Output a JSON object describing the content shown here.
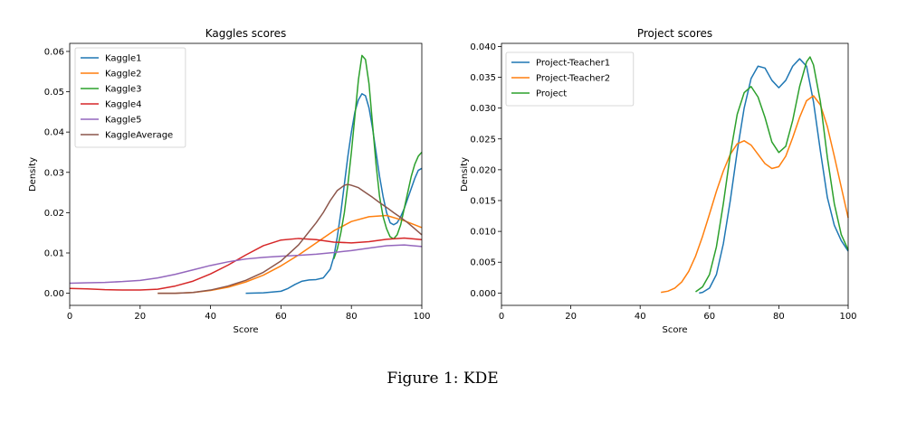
{
  "figure_caption": "Figure 1: KDE",
  "chart_data": [
    {
      "type": "line",
      "title": "Kaggles scores",
      "xlabel": "Score",
      "ylabel": "Density",
      "xlim": [
        0,
        100
      ],
      "ylim": [
        -0.003,
        0.062
      ],
      "xticks": [
        0,
        20,
        40,
        60,
        80,
        100
      ],
      "yticks": [
        0.0,
        0.01,
        0.02,
        0.03,
        0.04,
        0.05,
        0.06
      ],
      "ytick_labels": [
        "0.00",
        "0.01",
        "0.02",
        "0.03",
        "0.04",
        "0.05",
        "0.06"
      ],
      "grid": false,
      "legend_position": "upper-left",
      "series": [
        {
          "name": "Kaggle1",
          "color": "#1f77b4",
          "x": [
            50,
            55,
            60,
            62,
            64,
            66,
            68,
            70,
            72,
            74,
            75,
            76,
            77,
            78,
            79,
            80,
            81,
            82,
            83,
            84,
            85,
            86,
            87,
            88,
            89,
            90,
            91,
            92,
            93,
            94,
            95,
            96,
            97,
            98,
            99,
            100
          ],
          "y": [
            0.0,
            0.0001,
            0.0005,
            0.0012,
            0.0022,
            0.003,
            0.0033,
            0.0034,
            0.0038,
            0.006,
            0.009,
            0.014,
            0.02,
            0.027,
            0.034,
            0.04,
            0.045,
            0.048,
            0.0495,
            0.049,
            0.046,
            0.041,
            0.035,
            0.029,
            0.024,
            0.02,
            0.0175,
            0.017,
            0.0175,
            0.019,
            0.021,
            0.0235,
            0.026,
            0.0285,
            0.0305,
            0.031
          ]
        },
        {
          "name": "Kaggle2",
          "color": "#ff7f0e",
          "x": [
            25,
            30,
            35,
            40,
            45,
            50,
            55,
            60,
            65,
            70,
            75,
            80,
            85,
            90,
            95,
            100
          ],
          "y": [
            0.0,
            0.0,
            0.0002,
            0.0007,
            0.0015,
            0.0028,
            0.0045,
            0.0068,
            0.0095,
            0.0125,
            0.0155,
            0.0178,
            0.019,
            0.0193,
            0.018,
            0.0163
          ]
        },
        {
          "name": "Kaggle3",
          "color": "#2ca02c",
          "x": [
            75,
            76,
            77,
            78,
            79,
            80,
            81,
            82,
            83,
            84,
            85,
            86,
            87,
            88,
            89,
            90,
            91,
            92,
            93,
            94,
            95,
            96,
            97,
            98,
            99,
            100
          ],
          "y": [
            0.0085,
            0.011,
            0.015,
            0.02,
            0.027,
            0.035,
            0.044,
            0.053,
            0.059,
            0.058,
            0.052,
            0.042,
            0.032,
            0.024,
            0.019,
            0.016,
            0.014,
            0.0135,
            0.0145,
            0.017,
            0.021,
            0.025,
            0.029,
            0.032,
            0.034,
            0.035
          ]
        },
        {
          "name": "Kaggle4",
          "color": "#d62728",
          "x": [
            0,
            5,
            10,
            15,
            20,
            25,
            30,
            35,
            40,
            45,
            50,
            55,
            60,
            65,
            70,
            75,
            80,
            85,
            90,
            95,
            100
          ],
          "y": [
            0.0012,
            0.0011,
            0.0009,
            0.0008,
            0.0008,
            0.001,
            0.0018,
            0.003,
            0.0048,
            0.007,
            0.0095,
            0.0118,
            0.0132,
            0.0136,
            0.0133,
            0.0127,
            0.0125,
            0.0128,
            0.0134,
            0.0137,
            0.0133
          ]
        },
        {
          "name": "Kaggle5",
          "color": "#9467bd",
          "x": [
            0,
            5,
            10,
            15,
            20,
            25,
            30,
            35,
            40,
            45,
            50,
            55,
            60,
            65,
            70,
            75,
            80,
            85,
            90,
            95,
            100
          ],
          "y": [
            0.0025,
            0.0026,
            0.0027,
            0.0029,
            0.0032,
            0.0038,
            0.0047,
            0.0058,
            0.0069,
            0.0078,
            0.0085,
            0.0089,
            0.0092,
            0.0094,
            0.0097,
            0.0101,
            0.0106,
            0.0112,
            0.0118,
            0.012,
            0.0116
          ]
        },
        {
          "name": "KaggleAverage",
          "color": "#8c564b",
          "x": [
            25,
            30,
            35,
            40,
            45,
            50,
            55,
            60,
            65,
            70,
            72,
            74,
            76,
            78,
            79,
            80,
            82,
            84,
            86,
            88,
            90,
            92,
            94,
            96,
            98,
            100
          ],
          "y": [
            0.0,
            0.0,
            0.0002,
            0.0008,
            0.0018,
            0.0032,
            0.0052,
            0.008,
            0.012,
            0.0175,
            0.02,
            0.023,
            0.0255,
            0.0268,
            0.027,
            0.0268,
            0.0262,
            0.025,
            0.0238,
            0.0225,
            0.0213,
            0.02,
            0.0188,
            0.0175,
            0.016,
            0.0145
          ]
        }
      ]
    },
    {
      "type": "line",
      "title": "Project scores",
      "xlabel": "Score",
      "ylabel": "Density",
      "xlim": [
        0,
        100
      ],
      "ylim": [
        -0.002,
        0.0405
      ],
      "xticks": [
        0,
        20,
        40,
        60,
        80,
        100
      ],
      "yticks": [
        0.0,
        0.005,
        0.01,
        0.015,
        0.02,
        0.025,
        0.03,
        0.035,
        0.04
      ],
      "ytick_labels": [
        "0.000",
        "0.005",
        "0.010",
        "0.015",
        "0.020",
        "0.025",
        "0.030",
        "0.035",
        "0.040"
      ],
      "grid": false,
      "legend_position": "upper-left",
      "series": [
        {
          "name": "Project-Teacher1",
          "color": "#1f77b4",
          "x": [
            57,
            58,
            60,
            62,
            64,
            66,
            68,
            70,
            72,
            74,
            76,
            78,
            80,
            82,
            84,
            86,
            88,
            90,
            92,
            94,
            96,
            98,
            100
          ],
          "y": [
            0.0,
            0.0001,
            0.0008,
            0.003,
            0.008,
            0.015,
            0.023,
            0.03,
            0.0348,
            0.0368,
            0.0365,
            0.0345,
            0.0333,
            0.0345,
            0.0368,
            0.038,
            0.0368,
            0.031,
            0.023,
            0.0155,
            0.011,
            0.0085,
            0.0068
          ]
        },
        {
          "name": "Project-Teacher2",
          "color": "#ff7f0e",
          "x": [
            46,
            48,
            50,
            52,
            54,
            56,
            58,
            60,
            62,
            64,
            66,
            68,
            70,
            72,
            74,
            76,
            78,
            80,
            82,
            84,
            86,
            88,
            90,
            92,
            94,
            96,
            98,
            100
          ],
          "y": [
            0.0001,
            0.0003,
            0.0008,
            0.0018,
            0.0035,
            0.006,
            0.0092,
            0.0128,
            0.0165,
            0.0198,
            0.0225,
            0.0242,
            0.0247,
            0.024,
            0.0225,
            0.021,
            0.0202,
            0.0205,
            0.0222,
            0.0252,
            0.0285,
            0.0312,
            0.032,
            0.0305,
            0.027,
            0.0222,
            0.0172,
            0.0122
          ]
        },
        {
          "name": "Project",
          "color": "#2ca02c",
          "x": [
            56,
            58,
            60,
            62,
            64,
            66,
            68,
            70,
            72,
            74,
            76,
            78,
            80,
            82,
            84,
            86,
            88,
            89,
            90,
            92,
            94,
            96,
            98,
            100
          ],
          "y": [
            0.0002,
            0.001,
            0.003,
            0.0075,
            0.0145,
            0.0225,
            0.029,
            0.0325,
            0.0335,
            0.0318,
            0.0285,
            0.0245,
            0.0228,
            0.0238,
            0.028,
            0.0335,
            0.0375,
            0.0383,
            0.037,
            0.031,
            0.022,
            0.0145,
            0.0095,
            0.007
          ]
        }
      ]
    }
  ]
}
